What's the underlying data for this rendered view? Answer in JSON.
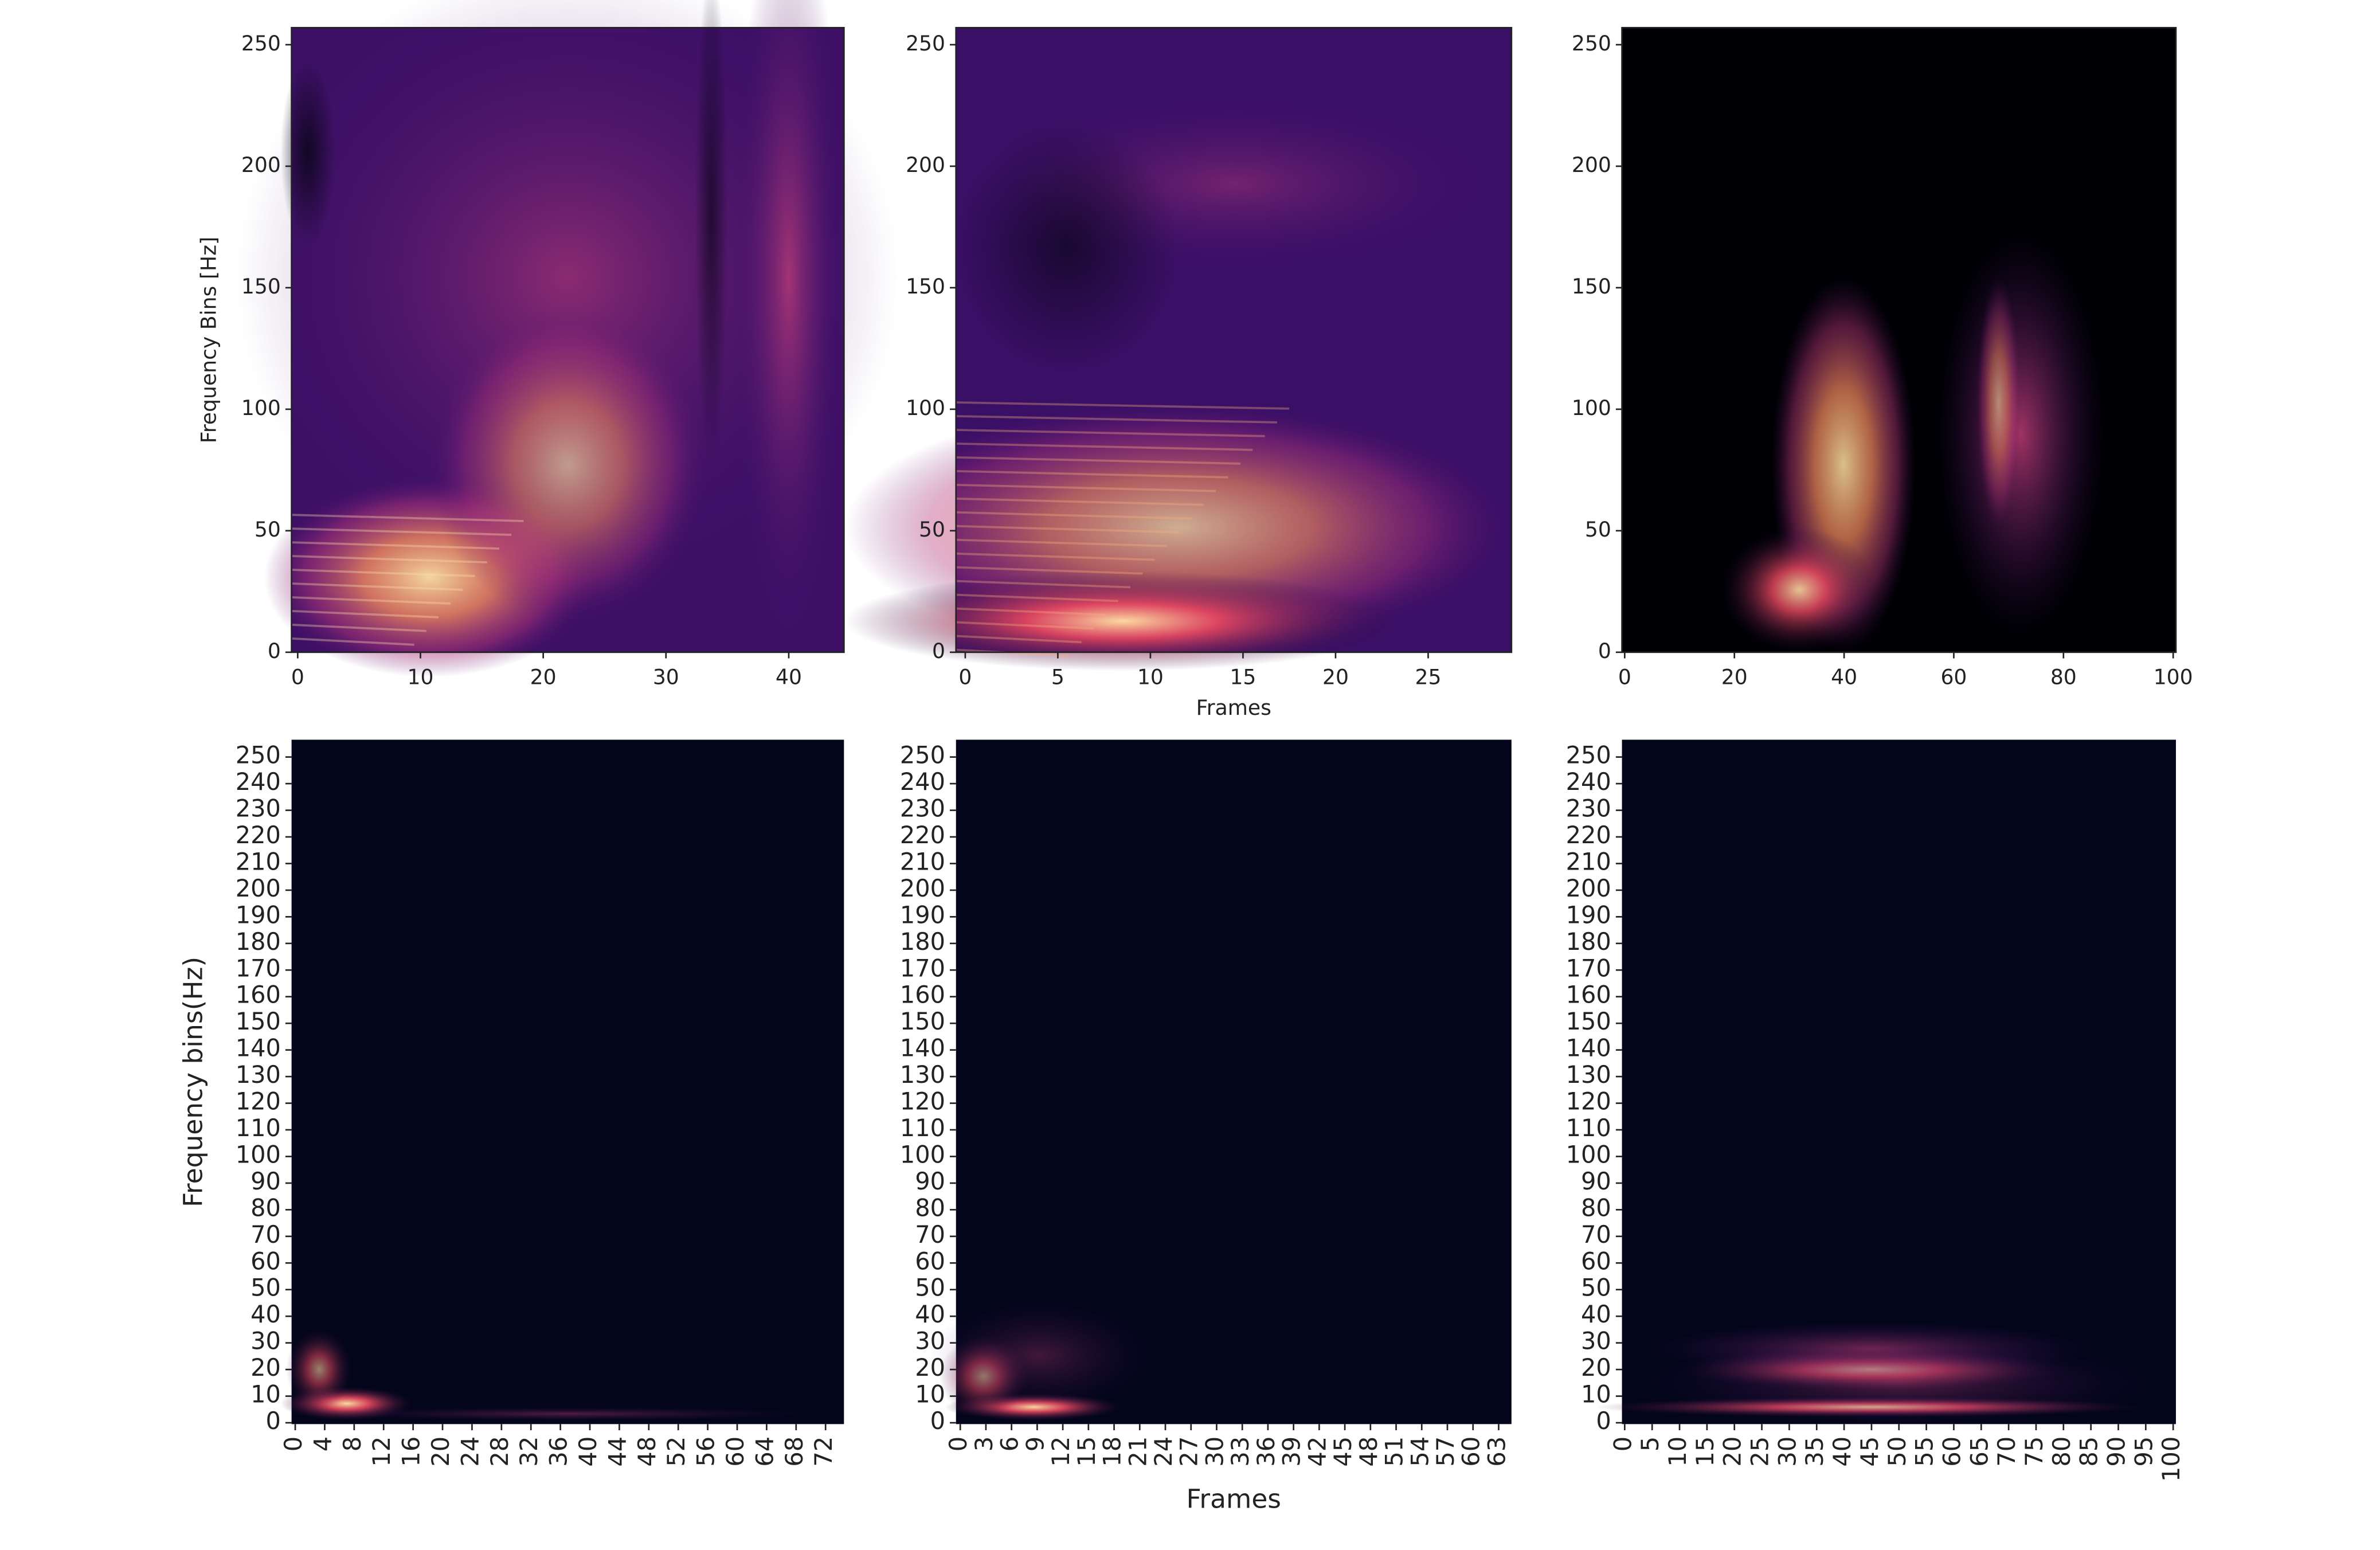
{
  "chart_data": [
    {
      "type": "heatmap",
      "ylabel": "Frequency Bins [Hz]",
      "xlim": [
        -0.5,
        44.5
      ],
      "ylim": [
        0,
        257
      ],
      "xticks": [
        0,
        10,
        20,
        30,
        40
      ],
      "yticks": [
        0,
        50,
        100,
        150,
        200,
        250
      ]
    },
    {
      "type": "heatmap",
      "xlabel": "Frames",
      "xlim": [
        -0.5,
        29.5
      ],
      "ylim": [
        0,
        257
      ],
      "xticks": [
        0,
        5,
        10,
        15,
        20,
        25
      ],
      "yticks": [
        0,
        50,
        100,
        150,
        200,
        250
      ]
    },
    {
      "type": "heatmap",
      "xlim": [
        -0.5,
        100.5
      ],
      "ylim": [
        0,
        257
      ],
      "xticks": [
        0,
        20,
        40,
        60,
        80,
        100
      ],
      "yticks": [
        0,
        50,
        100,
        150,
        200,
        250
      ]
    },
    {
      "type": "heatmap",
      "ylabel": "Frequency bins(Hz)",
      "xlim": [
        -0.5,
        74.5
      ],
      "ylim": [
        -0.5,
        256.5
      ],
      "xticks": [
        0,
        4,
        8,
        12,
        16,
        20,
        24,
        28,
        32,
        36,
        40,
        44,
        48,
        52,
        56,
        60,
        64,
        68,
        72
      ],
      "yticks": [
        0,
        10,
        20,
        30,
        40,
        50,
        60,
        70,
        80,
        90,
        100,
        110,
        120,
        130,
        140,
        150,
        160,
        170,
        180,
        190,
        200,
        210,
        220,
        230,
        240,
        250
      ]
    },
    {
      "type": "heatmap",
      "xlabel": "Frames",
      "xlim": [
        -0.5,
        64.5
      ],
      "ylim": [
        -0.5,
        256.5
      ],
      "xticks": [
        0,
        3,
        6,
        9,
        12,
        15,
        18,
        21,
        24,
        27,
        30,
        33,
        36,
        39,
        42,
        45,
        48,
        51,
        54,
        57,
        60,
        63
      ],
      "yticks": [
        0,
        10,
        20,
        30,
        40,
        50,
        60,
        70,
        80,
        90,
        100,
        110,
        120,
        130,
        140,
        150,
        160,
        170,
        180,
        190,
        200,
        210,
        220,
        230,
        240,
        250
      ]
    },
    {
      "type": "heatmap",
      "xlim": [
        -0.5,
        100.5
      ],
      "ylim": [
        -0.5,
        256.5
      ],
      "xticks": [
        0,
        5,
        10,
        15,
        20,
        25,
        30,
        35,
        40,
        45,
        50,
        55,
        60,
        65,
        70,
        75,
        80,
        85,
        90,
        95,
        100
      ],
      "yticks": [
        0,
        10,
        20,
        30,
        40,
        50,
        60,
        70,
        80,
        90,
        100,
        110,
        120,
        130,
        140,
        150,
        160,
        170,
        180,
        190,
        200,
        210,
        220,
        230,
        240,
        250
      ]
    }
  ]
}
